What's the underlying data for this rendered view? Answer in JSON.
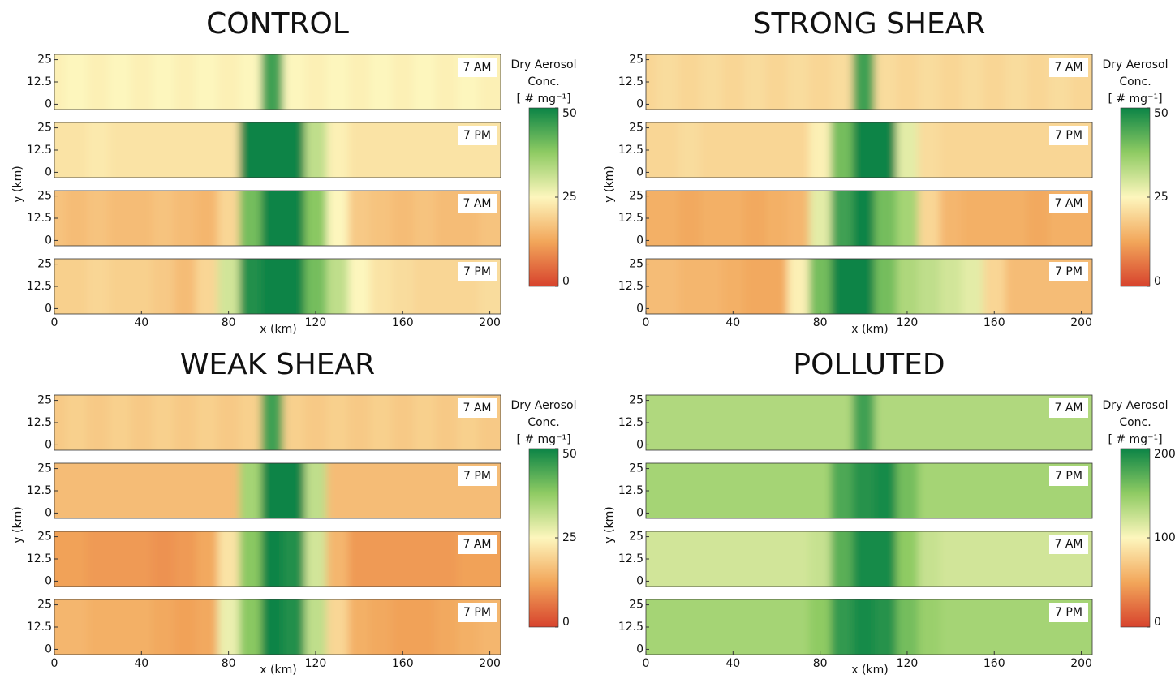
{
  "chart_data": [
    {
      "type": "heatmap",
      "title": "CONTROL",
      "xlabel": "x (km)",
      "ylabel": "y (km)",
      "xlim": [
        0,
        205
      ],
      "xticks": [
        0,
        40,
        80,
        120,
        160,
        200
      ],
      "ylim": [
        -3,
        28
      ],
      "yticks": [
        0,
        12.5,
        25
      ],
      "colorbar": {
        "label": [
          "Dry Aerosol",
          "Conc.",
          "[ # mg⁻¹]"
        ],
        "clim": [
          0,
          50
        ],
        "cticks": [
          0,
          25,
          50
        ]
      },
      "colormap": [
        "#d7432d",
        "#f2a65a",
        "#fdf6bd",
        "#8fcb63",
        "#0b8446"
      ],
      "x": [
        0,
        10,
        20,
        30,
        40,
        50,
        60,
        70,
        80,
        90,
        100,
        110,
        120,
        130,
        140,
        150,
        160,
        170,
        180,
        190,
        200
      ],
      "rows": [
        {
          "label": "7 AM",
          "values": [
            24,
            25,
            24,
            25,
            24,
            25,
            24,
            25,
            24,
            25,
            45,
            25,
            24,
            25,
            24,
            25,
            24,
            25,
            24,
            25,
            24
          ]
        },
        {
          "label": "7 PM",
          "values": [
            22,
            22,
            23,
            22,
            22,
            22,
            22,
            22,
            22,
            50,
            50,
            50,
            32,
            24,
            22,
            22,
            22,
            22,
            22,
            22,
            22
          ]
        },
        {
          "label": "7 AM",
          "values": [
            17,
            16,
            17,
            16,
            16,
            17,
            16,
            15,
            20,
            40,
            50,
            50,
            38,
            25,
            18,
            17,
            16,
            17,
            16,
            16,
            17
          ]
        },
        {
          "label": "7 PM",
          "values": [
            19,
            19,
            20,
            19,
            19,
            18,
            16,
            20,
            30,
            48,
            50,
            50,
            40,
            32,
            25,
            22,
            21,
            20,
            20,
            20,
            21
          ]
        }
      ]
    },
    {
      "type": "heatmap",
      "title": "STRONG SHEAR",
      "xlabel": "x (km)",
      "ylabel": "y (km)",
      "xlim": [
        0,
        205
      ],
      "xticks": [
        0,
        40,
        80,
        120,
        160,
        200
      ],
      "ylim": [
        -3,
        28
      ],
      "yticks": [
        0,
        12.5,
        25
      ],
      "colorbar": {
        "label": [
          "Dry Aerosol",
          "Conc.",
          "[ # mg⁻¹]"
        ],
        "clim": [
          0,
          50
        ],
        "cticks": [
          0,
          25,
          50
        ]
      },
      "colormap": [
        "#d7432d",
        "#f2a65a",
        "#fdf6bd",
        "#8fcb63",
        "#0b8446"
      ],
      "x": [
        0,
        10,
        20,
        30,
        40,
        50,
        60,
        70,
        80,
        90,
        100,
        110,
        120,
        130,
        140,
        150,
        160,
        170,
        180,
        190,
        200
      ],
      "rows": [
        {
          "label": "7 AM",
          "values": [
            20,
            21,
            20,
            21,
            20,
            21,
            20,
            21,
            20,
            21,
            45,
            21,
            20,
            21,
            20,
            21,
            20,
            21,
            20,
            21,
            20
          ]
        },
        {
          "label": "7 PM",
          "values": [
            20,
            20,
            21,
            20,
            20,
            20,
            20,
            20,
            24,
            40,
            50,
            50,
            28,
            21,
            20,
            20,
            20,
            20,
            20,
            20,
            20
          ]
        },
        {
          "label": "7 AM",
          "values": [
            14,
            14,
            13,
            14,
            14,
            13,
            14,
            15,
            28,
            45,
            50,
            40,
            35,
            20,
            15,
            14,
            14,
            14,
            13,
            14,
            14
          ]
        },
        {
          "label": "7 PM",
          "values": [
            16,
            16,
            15,
            15,
            14,
            13,
            13,
            24,
            40,
            50,
            50,
            40,
            34,
            32,
            30,
            28,
            20,
            16,
            16,
            16,
            16
          ]
        }
      ]
    },
    {
      "type": "heatmap",
      "title": "WEAK SHEAR",
      "xlabel": "x (km)",
      "ylabel": "y (km)",
      "xlim": [
        0,
        205
      ],
      "xticks": [
        0,
        40,
        80,
        120,
        160,
        200
      ],
      "ylim": [
        -3,
        28
      ],
      "yticks": [
        0,
        12.5,
        25
      ],
      "colorbar": {
        "label": [
          "Dry Aerosol",
          "Conc.",
          "[ # mg⁻¹]"
        ],
        "clim": [
          0,
          50
        ],
        "cticks": [
          0,
          25,
          50
        ]
      },
      "colormap": [
        "#d7432d",
        "#f2a65a",
        "#fdf6bd",
        "#8fcb63",
        "#0b8446"
      ],
      "x": [
        0,
        10,
        20,
        30,
        40,
        50,
        60,
        70,
        80,
        90,
        100,
        110,
        120,
        130,
        140,
        150,
        160,
        170,
        180,
        190,
        200
      ],
      "rows": [
        {
          "label": "7 AM",
          "values": [
            18,
            19,
            18,
            19,
            18,
            19,
            18,
            19,
            18,
            19,
            45,
            19,
            18,
            19,
            18,
            19,
            18,
            19,
            18,
            19,
            18
          ]
        },
        {
          "label": "7 PM",
          "values": [
            16,
            16,
            16,
            16,
            16,
            16,
            16,
            16,
            16,
            35,
            50,
            50,
            32,
            16,
            16,
            16,
            16,
            16,
            16,
            16,
            16
          ]
        },
        {
          "label": "7 AM",
          "values": [
            12,
            12,
            11,
            11,
            11,
            10,
            11,
            13,
            22,
            38,
            50,
            48,
            30,
            15,
            11,
            11,
            11,
            11,
            11,
            12,
            12
          ]
        },
        {
          "label": "7 PM",
          "values": [
            15,
            15,
            14,
            14,
            14,
            13,
            12,
            13,
            27,
            38,
            50,
            48,
            32,
            20,
            14,
            13,
            12,
            12,
            13,
            14,
            15
          ]
        }
      ]
    },
    {
      "type": "heatmap",
      "title": "POLLUTED",
      "xlabel": "x (km)",
      "ylabel": "y (km)",
      "xlim": [
        0,
        205
      ],
      "xticks": [
        0,
        40,
        80,
        120,
        160,
        200
      ],
      "ylim": [
        -3,
        28
      ],
      "yticks": [
        0,
        12.5,
        25
      ],
      "colorbar": {
        "label": [
          "Dry Aerosol",
          "Conc.",
          "[ # mg⁻¹]"
        ],
        "clim": [
          0,
          200
        ],
        "cticks": [
          0,
          100,
          200
        ]
      },
      "colormap": [
        "#d7432d",
        "#f2a65a",
        "#fdf6bd",
        "#8fcb63",
        "#0b8446"
      ],
      "x": [
        0,
        10,
        20,
        30,
        40,
        50,
        60,
        70,
        80,
        90,
        100,
        110,
        120,
        130,
        140,
        150,
        160,
        170,
        180,
        190,
        200
      ],
      "rows": [
        {
          "label": "7 AM",
          "values": [
            135,
            135,
            135,
            135,
            135,
            135,
            135,
            135,
            135,
            135,
            180,
            135,
            135,
            135,
            135,
            135,
            135,
            135,
            135,
            135,
            135
          ]
        },
        {
          "label": "7 PM",
          "values": [
            140,
            140,
            140,
            140,
            140,
            140,
            140,
            140,
            140,
            175,
            190,
            195,
            160,
            140,
            140,
            140,
            140,
            140,
            140,
            140,
            140
          ]
        },
        {
          "label": "7 AM",
          "values": [
            120,
            120,
            120,
            120,
            120,
            120,
            120,
            120,
            125,
            170,
            195,
            195,
            150,
            125,
            120,
            120,
            120,
            120,
            120,
            120,
            120
          ]
        },
        {
          "label": "7 PM",
          "values": [
            140,
            140,
            140,
            140,
            140,
            140,
            140,
            140,
            150,
            185,
            195,
            190,
            160,
            145,
            140,
            140,
            140,
            140,
            140,
            140,
            140
          ]
        }
      ]
    }
  ]
}
